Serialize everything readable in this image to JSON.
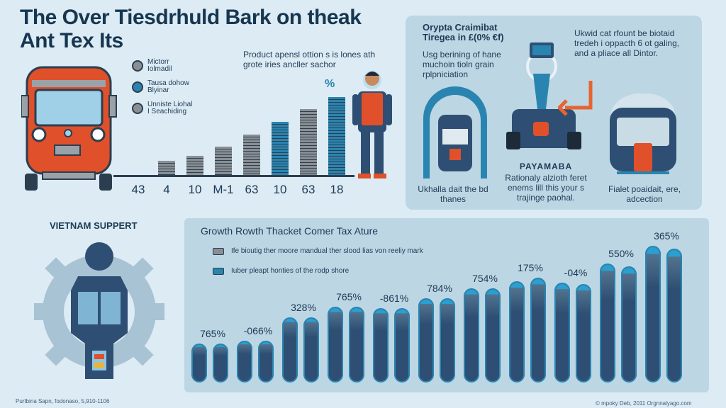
{
  "title": [
    "The Over Tiesdrhuld Bark on theak",
    "Ant Tex Its"
  ],
  "top_chart": {
    "legend": [
      {
        "label": [
          "Mictorr",
          "Iolmadil"
        ],
        "color": "#8a8f94"
      },
      {
        "label": [
          "Tausa dohow",
          "Blyinar"
        ],
        "color": "#2a84b0"
      },
      {
        "label": [
          "Unniste Liohal",
          "I Seachiding"
        ],
        "color": "#8a8f94"
      }
    ],
    "intro": "Product apensl ottion s is lones ath grote iries ancller sachor",
    "percent_icon": "%"
  },
  "right_panel": {
    "title": [
      "Orypta Craimibat",
      "Tiregea in £(0% €f)"
    ],
    "left_text": "Usg berining of hane muchoin tioln grain rplpniciation",
    "right_text": "Ukwid cat rfount be biotaid tredeh i oppacth 6 ot galing, and a pliace all Dintor.",
    "caption1": "Ukhalla dait the bd thanes",
    "caption2_title": "PAYAMABA",
    "caption2": "Rationaly alzioth feret enems lill this your s trajinge paohal.",
    "caption3": "Fialet poaidait, ere, adcection"
  },
  "vietnam": {
    "title": "VIETNAM SUPPERT",
    "footer": "Purtbina Sapn, fodonaso, 5,910-1106"
  },
  "credit": "© mpoky Deb, 2011 Orgnnalyago.com",
  "chart_data": [
    {
      "type": "bar",
      "title": "",
      "categories": [
        "43",
        "4",
        "10",
        "M-1",
        "63",
        "10",
        "63",
        "18"
      ],
      "values": [
        0,
        18,
        25,
        36,
        52,
        68,
        85,
        100
      ],
      "colors": [
        "#8a8f94",
        "#8a8f94",
        "#8a8f94",
        "#8a8f94",
        "#8a8f94",
        "#2a84b0",
        "#8a8f94",
        "#2a84b0"
      ],
      "ylim": [
        0,
        100
      ],
      "note": "relative bar heights, no y-axis shown"
    },
    {
      "type": "bar",
      "title": "Growth Rowth Thacket Comer Tax Ature",
      "legend": [
        "Ife bioutig ther moore mandual ther slood lias von reeliy mark",
        "Iuber pleapt honties of the rodp shore"
      ],
      "group_labels": [
        "765%",
        "-066%",
        "328%",
        "765%",
        "-861%",
        "784%",
        "754%",
        "175%",
        "-04%",
        "550%",
        "365%"
      ],
      "series": [
        {
          "name": "Ife bioutig ther moore mandual ther slood lias von reeliy mark",
          "values": [
            27,
            29,
            45,
            52,
            51,
            58,
            65,
            70,
            69,
            82,
            94
          ]
        },
        {
          "name": "Iuber pleapt honties of the rodp shore",
          "values": [
            27,
            29,
            45,
            52,
            51,
            58,
            65,
            72,
            68,
            80,
            92
          ]
        }
      ],
      "ylim": [
        0,
        100
      ],
      "note": "relative bar heights, no y-axis shown"
    }
  ]
}
